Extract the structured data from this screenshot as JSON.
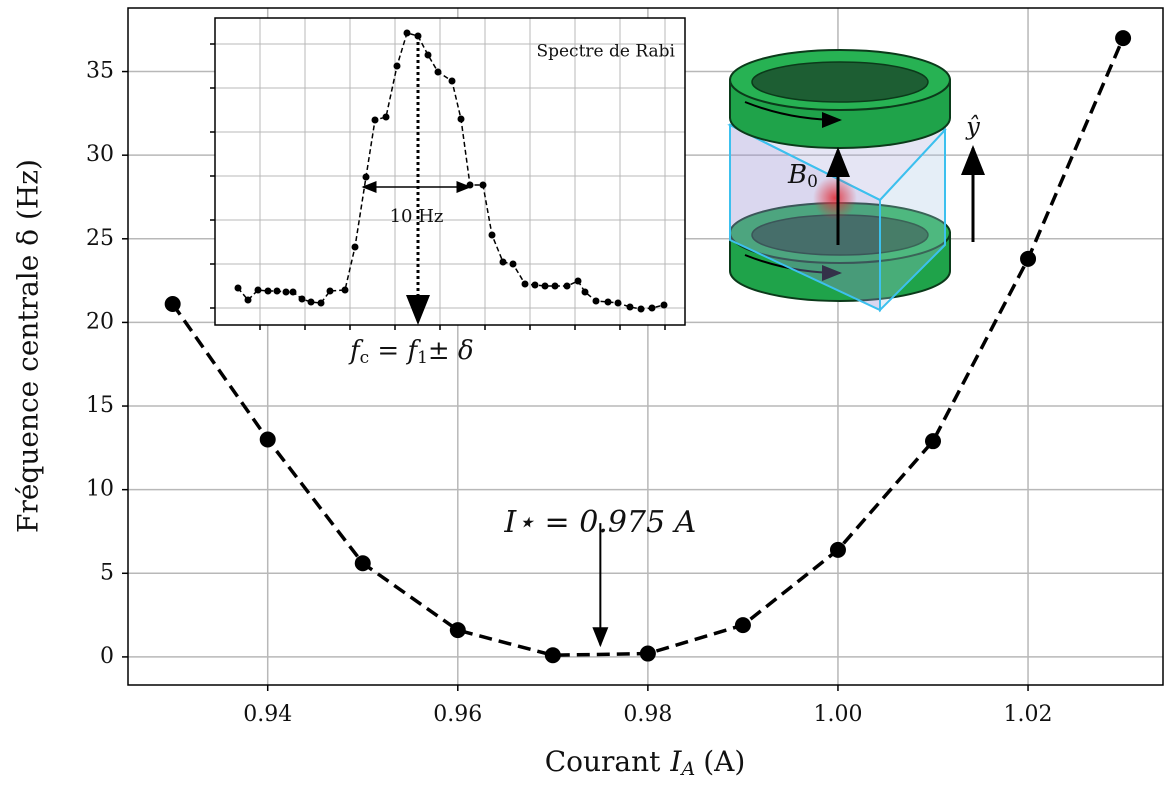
{
  "chart_data": [
    {
      "type": "line",
      "x_label": {
        "text": "Courant",
        "symbol": "I",
        "subscript": "A",
        "unit": "(A)"
      },
      "y_label": "Fréquence centrale  δ  (Hz)",
      "x": [
        0.93,
        0.94,
        0.95,
        0.96,
        0.97,
        0.98,
        0.99,
        1.0,
        1.01,
        1.02,
        1.03
      ],
      "series": [
        {
          "color": "#000000",
          "values": [
            21.1,
            13.0,
            5.6,
            1.6,
            0.1,
            0.2,
            1.9,
            6.4,
            12.9,
            23.8,
            37.0
          ]
        }
      ],
      "xlim": [
        0.9253,
        1.0342
      ],
      "ylim": [
        -1.68,
        38.8
      ],
      "xticks": [
        0.94,
        0.96,
        0.98,
        {
          "value": 1.0,
          "label": "1.00"
        },
        1.02
      ],
      "yticks": [
        0,
        5,
        10,
        15,
        20,
        25,
        30,
        35
      ],
      "grid": true,
      "annotation": {
        "text": "I⋆ = 0.975  A",
        "x": 0.975,
        "y_from": 8,
        "y_to": 0.7
      },
      "illustration_labels": {
        "field": "B",
        "field_subscript": "0",
        "axis": "ŷ"
      }
    },
    {
      "type": "line",
      "title": "Spectre de Rabi",
      "x": [
        23,
        33,
        43,
        53,
        62,
        71,
        78,
        87,
        96,
        106,
        115,
        130,
        140,
        151,
        160,
        171,
        182,
        192,
        203,
        213,
        223,
        237,
        246,
        255,
        268,
        277,
        288,
        298,
        310,
        320,
        330,
        340,
        352,
        363,
        370,
        381,
        393,
        403,
        415,
        426,
        437,
        449
      ],
      "series": [
        {
          "color": "#000000",
          "values": [
            37,
            25,
            35,
            34,
            34,
            33,
            33,
            26,
            23,
            22,
            34,
            35,
            78,
            148,
            205,
            208,
            259,
            292,
            289,
            270,
            253,
            244,
            206,
            140,
            140,
            90,
            63,
            61,
            41,
            40,
            39,
            39,
            39,
            44,
            33,
            24,
            23,
            22,
            18,
            16,
            17,
            20
          ]
        }
      ],
      "xlim": [
        0,
        470
      ],
      "ylim": [
        0,
        307
      ],
      "xticks": [
        45,
        90,
        135,
        180,
        225,
        270,
        315,
        360,
        405,
        450
      ],
      "yticks": [
        17,
        61,
        105,
        149,
        193,
        237,
        281
      ],
      "grid": true,
      "width_annotation": {
        "text": "10 Hz",
        "x_from": 148,
        "x_to": 255,
        "y": 138
      },
      "center_annotation": {
        "x": 203,
        "formula": [
          {
            "text": "f",
            "sub": false
          },
          {
            "text": "c",
            "sub": true
          },
          {
            "text": " = f",
            "sub": false
          },
          {
            "text": "1",
            "sub": true
          },
          {
            "text": "± δ",
            "sub": false
          }
        ]
      }
    }
  ]
}
